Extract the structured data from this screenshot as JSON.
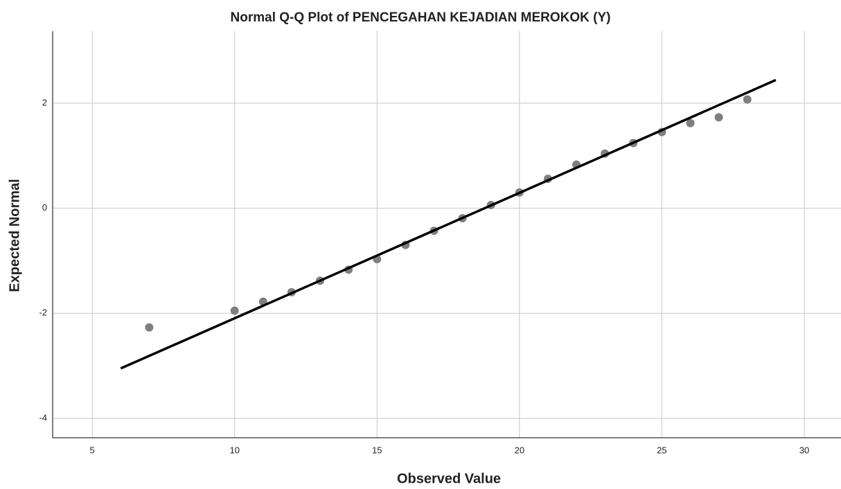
{
  "chart_data": {
    "type": "scatter",
    "title": "Normal Q-Q Plot of PENCEGAHAN KEJADIAN MEROKOK (Y)",
    "x_label": "Observed Value",
    "y_label": "Expected Normal",
    "x": [
      7,
      10,
      11,
      12,
      13,
      14,
      15,
      16,
      17,
      18,
      19,
      20,
      21,
      22,
      23,
      24,
      25,
      26,
      27,
      28
    ],
    "values": [
      -2.27,
      -1.95,
      -1.78,
      -1.6,
      -1.38,
      -1.17,
      -0.97,
      -0.7,
      -0.43,
      -0.19,
      0.06,
      0.3,
      0.56,
      0.83,
      1.04,
      1.24,
      1.45,
      1.62,
      1.73,
      2.07
    ],
    "color": "#7f7f7f",
    "reference_line": {
      "x": [
        6,
        29
      ],
      "y": [
        -3.05,
        2.44
      ],
      "color": "#000000"
    },
    "xlim": [
      3.61,
      31.29
    ],
    "xticks": [
      5,
      10,
      15,
      20,
      25,
      30
    ],
    "ylim": [
      -4.37,
      3.37
    ],
    "yticks": [
      -4,
      -2,
      0,
      2
    ],
    "grid": true
  }
}
